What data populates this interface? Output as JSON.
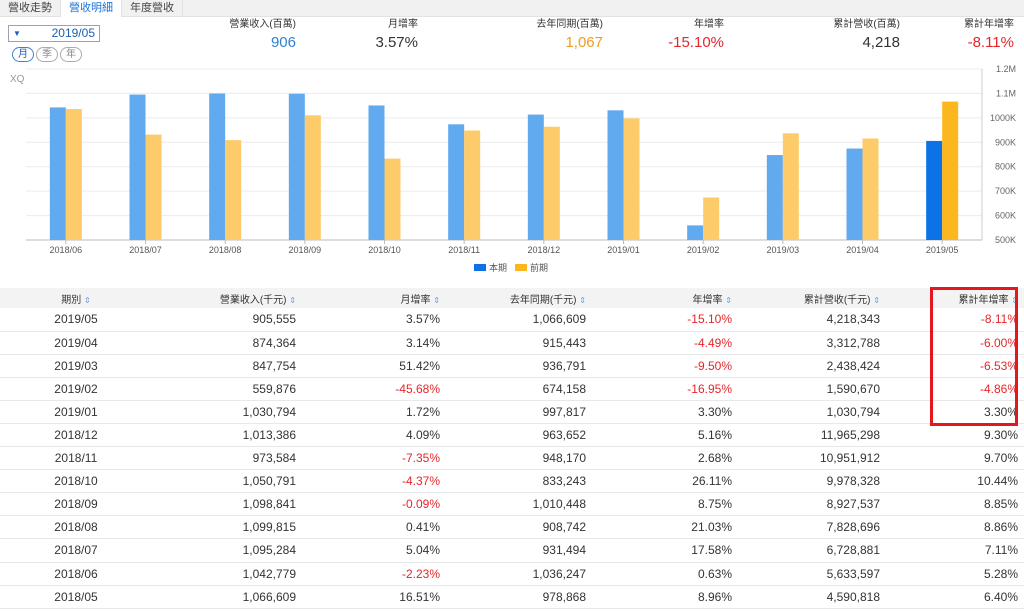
{
  "tabs": [
    {
      "label": "營收走勢"
    },
    {
      "label": "營收明細"
    },
    {
      "label": "年度營收"
    }
  ],
  "period_select": {
    "value": "2019/05",
    "arrow": "▼"
  },
  "freq": [
    {
      "label": "月"
    },
    {
      "label": "季"
    },
    {
      "label": "年"
    }
  ],
  "summary": {
    "revenue_label": "營業收入(百萬)",
    "revenue_value": "906",
    "mom_label": "月增率",
    "mom_value": "3.57%",
    "prev_label": "去年同期(百萬)",
    "prev_value": "1,067",
    "yoy_label": "年增率",
    "yoy_value": "-15.10%",
    "cum_label": "累計營收(百萬)",
    "cum_value": "4,218",
    "cum_yoy_label": "累計年增率",
    "cum_yoy_value": "-8.11%"
  },
  "watermark": "XQ",
  "colors": {
    "current": "#62aaf0",
    "previous": "#fdcb69",
    "current_latest": "#0b72e8",
    "previous_latest": "#fcb61e",
    "negative": "#e5262b"
  },
  "chart_data": {
    "type": "bar",
    "categories": [
      "2018/06",
      "2018/07",
      "2018/08",
      "2018/09",
      "2018/10",
      "2018/11",
      "2018/12",
      "2019/01",
      "2019/02",
      "2019/03",
      "2019/04",
      "2019/05"
    ],
    "series": [
      {
        "name": "本期",
        "values": [
          1042779,
          1095284,
          1099815,
          1098841,
          1050791,
          973584,
          1013386,
          1030794,
          559876,
          847754,
          874364,
          905555
        ]
      },
      {
        "name": "前期",
        "values": [
          1036247,
          931494,
          908742,
          1010448,
          833243,
          948170,
          963652,
          997817,
          674158,
          936791,
          915443,
          1066609
        ]
      }
    ],
    "y_ticks": [
      "500K",
      "600K",
      "700K",
      "800K",
      "900K",
      "1000K",
      "1.1M",
      "1.2M"
    ],
    "ylim": [
      500000,
      1200000
    ],
    "legend": [
      "本期",
      "前期"
    ]
  },
  "table": {
    "headers": [
      "期別",
      "營業收入(千元)",
      "月增率",
      "去年同期(千元)",
      "年增率",
      "累計營收(千元)",
      "累計年增率"
    ],
    "sort_icon": "⇕",
    "rows": [
      [
        "2019/05",
        "905,555",
        "3.57%",
        "1,066,609",
        "-15.10%",
        "4,218,343",
        "-8.11%"
      ],
      [
        "2019/04",
        "874,364",
        "3.14%",
        "915,443",
        "-4.49%",
        "3,312,788",
        "-6.00%"
      ],
      [
        "2019/03",
        "847,754",
        "51.42%",
        "936,791",
        "-9.50%",
        "2,438,424",
        "-6.53%"
      ],
      [
        "2019/02",
        "559,876",
        "-45.68%",
        "674,158",
        "-16.95%",
        "1,590,670",
        "-4.86%"
      ],
      [
        "2019/01",
        "1,030,794",
        "1.72%",
        "997,817",
        "3.30%",
        "1,030,794",
        "3.30%"
      ],
      [
        "2018/12",
        "1,013,386",
        "4.09%",
        "963,652",
        "5.16%",
        "11,965,298",
        "9.30%"
      ],
      [
        "2018/11",
        "973,584",
        "-7.35%",
        "948,170",
        "2.68%",
        "10,951,912",
        "9.70%"
      ],
      [
        "2018/10",
        "1,050,791",
        "-4.37%",
        "833,243",
        "26.11%",
        "9,978,328",
        "10.44%"
      ],
      [
        "2018/09",
        "1,098,841",
        "-0.09%",
        "1,010,448",
        "8.75%",
        "8,927,537",
        "8.85%"
      ],
      [
        "2018/08",
        "1,099,815",
        "0.41%",
        "908,742",
        "21.03%",
        "7,828,696",
        "8.86%"
      ],
      [
        "2018/07",
        "1,095,284",
        "5.04%",
        "931,494",
        "17.58%",
        "6,728,881",
        "7.11%"
      ],
      [
        "2018/06",
        "1,042,779",
        "-2.23%",
        "1,036,247",
        "0.63%",
        "5,633,597",
        "5.28%"
      ],
      [
        "2018/05",
        "1,066,609",
        "16.51%",
        "978,868",
        "8.96%",
        "4,590,818",
        "6.40%"
      ]
    ]
  }
}
